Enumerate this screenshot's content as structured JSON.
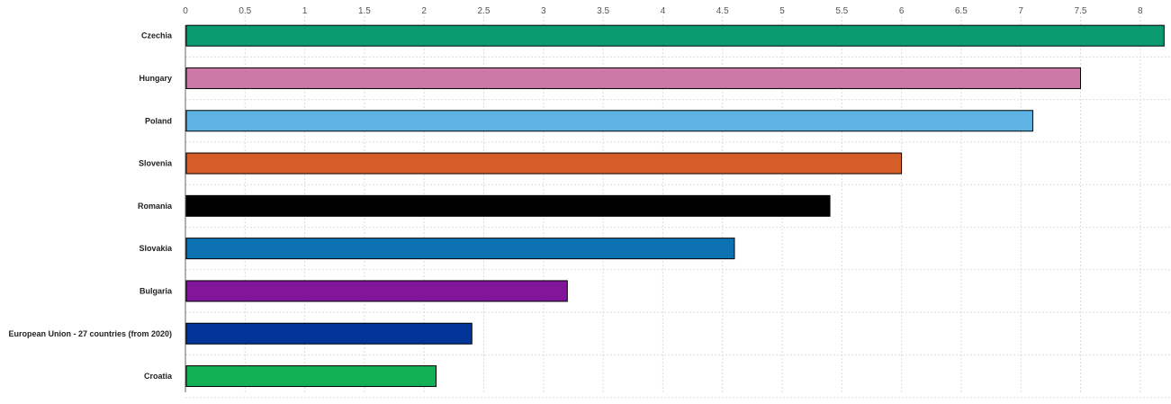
{
  "chart_data": {
    "type": "bar",
    "orientation": "horizontal",
    "categories": [
      "Czechia",
      "Hungary",
      "Poland",
      "Slovenia",
      "Romania",
      "Slovakia",
      "Bulgaria",
      "European Union - 27 countries (from 2020)",
      "Croatia"
    ],
    "values": [
      8.2,
      7.5,
      7.1,
      6.0,
      5.4,
      4.6,
      3.2,
      2.4,
      2.1
    ],
    "colors": [
      "#0a9b70",
      "#cc79a7",
      "#5db3e4",
      "#d55e28",
      "#000000",
      "#0d72b2",
      "#81169b",
      "#02349a",
      "#12b155"
    ],
    "xlim": [
      0,
      8.2
    ],
    "x_ticks": [
      "0",
      "0.5",
      "1",
      "1.5",
      "2",
      "2.5",
      "3",
      "3.5",
      "4",
      "4.5",
      "5",
      "5.5",
      "6",
      "6.5",
      "7",
      "7.5",
      "8"
    ],
    "x_axis_position": "top",
    "grid": true,
    "title": "",
    "xlabel": "",
    "ylabel": ""
  }
}
